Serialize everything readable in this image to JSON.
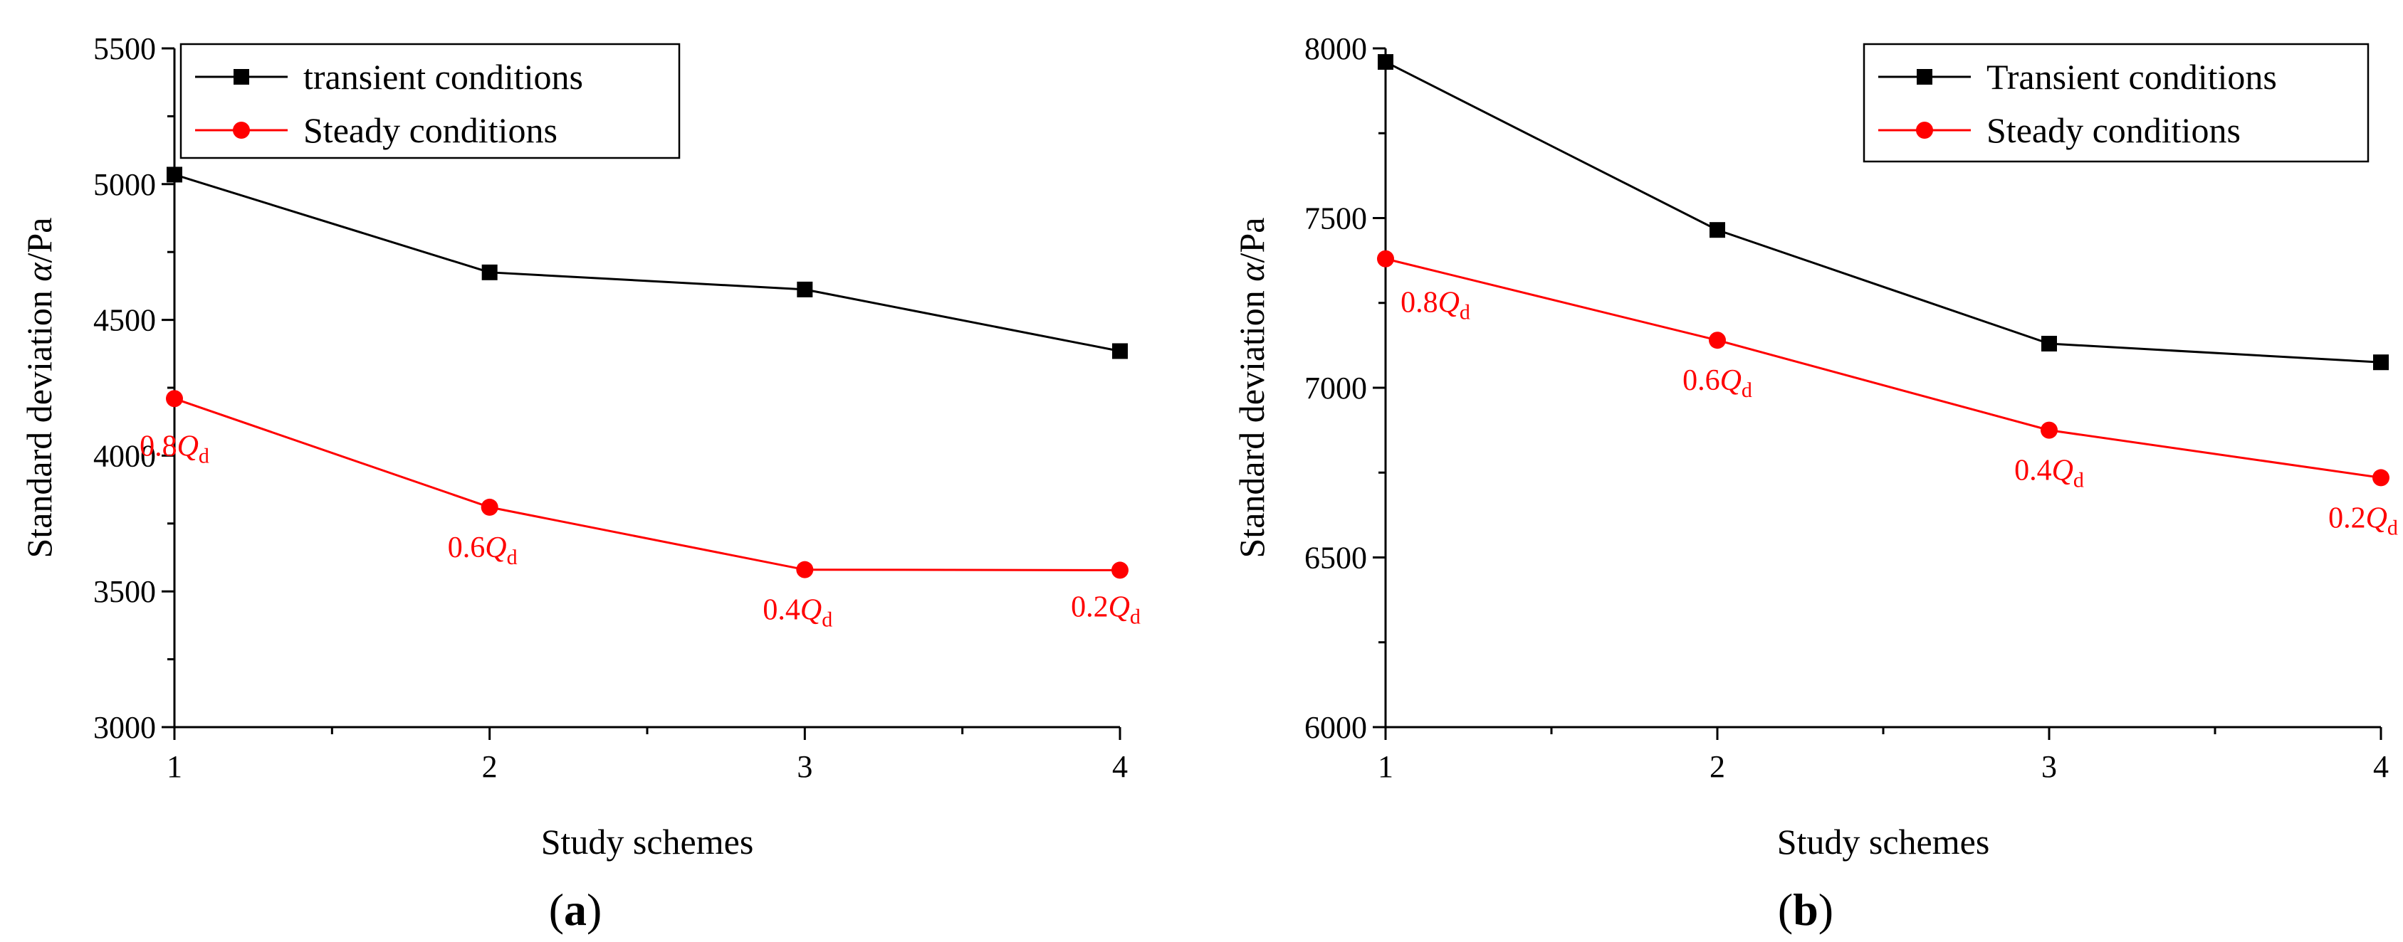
{
  "chart_data": [
    {
      "type": "line",
      "panel_label": "a",
      "xlabel": "Study schemes",
      "ylabel_main": "Standard deviation ",
      "ylabel_symbol": "α",
      "ylabel_unit": "/Pa",
      "x": [
        1,
        2,
        3,
        4
      ],
      "xlim": [
        1,
        4
      ],
      "ylim": [
        3000,
        5500
      ],
      "yticks": [
        3000,
        3500,
        4000,
        4500,
        5000,
        5500
      ],
      "xticks": [
        1,
        2,
        3,
        4
      ],
      "legend_position": "top-left",
      "series": [
        {
          "name": "transient conditions",
          "color": "#000000",
          "marker": "square",
          "values": [
            5035,
            4675,
            4612,
            4385
          ]
        },
        {
          "name": "Steady conditions",
          "color": "#ff0000",
          "marker": "circle",
          "values": [
            4210,
            3810,
            3580,
            3578
          ]
        }
      ],
      "annotations": [
        {
          "num": "0.8",
          "sym": "Q",
          "sub": "d",
          "point": 0
        },
        {
          "num": "0.6",
          "sym": "Q",
          "sub": "d",
          "point": 1
        },
        {
          "num": "0.4",
          "sym": "Q",
          "sub": "d",
          "point": 2
        },
        {
          "num": "0.2",
          "sym": "Q",
          "sub": "d",
          "point": 3
        }
      ]
    },
    {
      "type": "line",
      "panel_label": "b",
      "xlabel": "Study schemes",
      "ylabel_main": "Standard deviation ",
      "ylabel_symbol": "α",
      "ylabel_unit": "/Pa",
      "x": [
        1,
        2,
        3,
        4
      ],
      "xlim": [
        1,
        4
      ],
      "ylim": [
        6000,
        8000
      ],
      "yticks": [
        6000,
        6500,
        7000,
        7500,
        8000
      ],
      "xticks": [
        1,
        2,
        3,
        4
      ],
      "legend_position": "top-right",
      "series": [
        {
          "name": "Transient conditions",
          "color": "#000000",
          "marker": "square",
          "values": [
            7960,
            7465,
            7130,
            7075
          ]
        },
        {
          "name": "Steady conditions",
          "color": "#ff0000",
          "marker": "circle",
          "values": [
            7380,
            7140,
            6875,
            6735
          ]
        }
      ],
      "annotations": [
        {
          "num": "0.8",
          "sym": "Q",
          "sub": "d",
          "point": 0
        },
        {
          "num": "0.6",
          "sym": "Q",
          "sub": "d",
          "point": 1
        },
        {
          "num": "0.4",
          "sym": "Q",
          "sub": "d",
          "point": 2
        },
        {
          "num": "0.2",
          "sym": "Q",
          "sub": "d",
          "point": 3
        }
      ]
    }
  ]
}
